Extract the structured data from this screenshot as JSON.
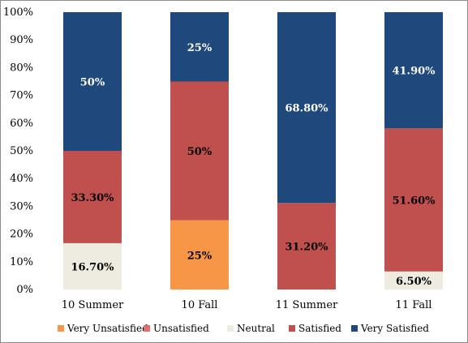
{
  "chart_data": {
    "type": "bar",
    "stacked": true,
    "percent_stacked": true,
    "categories": [
      "10 Summer",
      "10 Fall",
      "11 Summer",
      "11 Fall"
    ],
    "series": [
      {
        "name": "Very Unsatisfied",
        "color": "#F79646",
        "values": [
          0,
          25,
          0,
          0
        ],
        "labels": [
          "",
          "25%",
          "",
          ""
        ]
      },
      {
        "name": "Unsatisfied",
        "color": "#E46C6C",
        "values": [
          0,
          0,
          0,
          0
        ],
        "labels": [
          "",
          "",
          "",
          ""
        ]
      },
      {
        "name": "Neutral",
        "color": "#EEECE1",
        "values": [
          16.7,
          0,
          0,
          6.5
        ],
        "labels": [
          "16.70%",
          "",
          "",
          "6.50%"
        ]
      },
      {
        "name": "Satisfied",
        "color": "#C0504D",
        "values": [
          33.3,
          50,
          31.2,
          51.6
        ],
        "labels": [
          "33.30%",
          "50%",
          "31.20%",
          "51.60%"
        ]
      },
      {
        "name": "Very Satisfied",
        "color": "#1F497D",
        "values": [
          50,
          25,
          68.8,
          41.9
        ],
        "labels": [
          "50%",
          "25%",
          "68.80%",
          "41.90%"
        ]
      }
    ],
    "y_ticks": [
      "0%",
      "10%",
      "20%",
      "30%",
      "40%",
      "50%",
      "60%",
      "70%",
      "80%",
      "90%",
      "100%"
    ],
    "ylim": [
      0,
      100
    ],
    "grid": false,
    "legend_position": "bottom",
    "title": "",
    "xlabel": "",
    "ylabel": ""
  }
}
